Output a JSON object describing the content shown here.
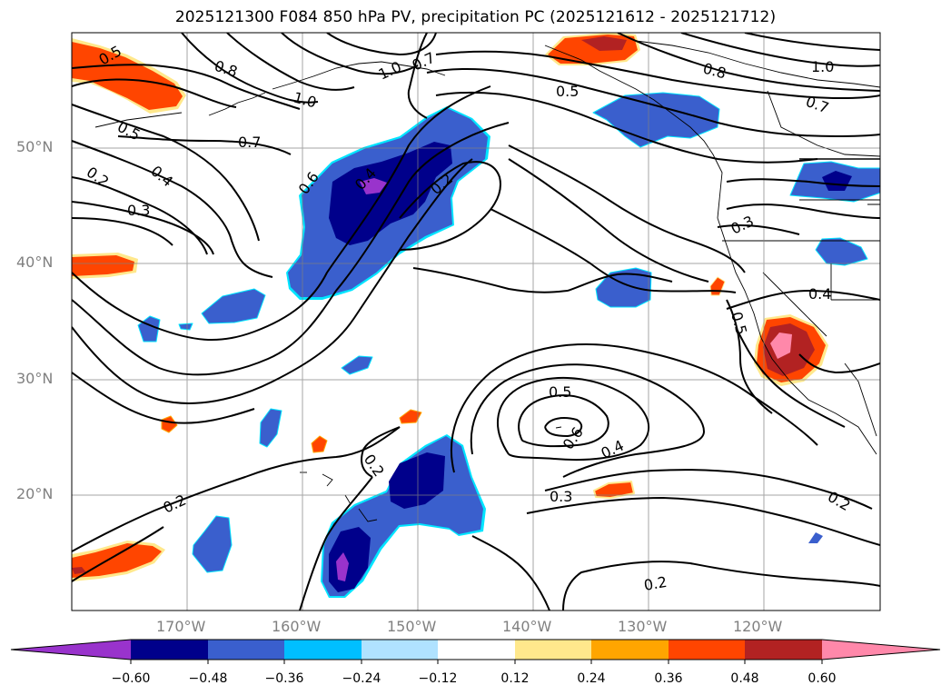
{
  "title": "2025121300 F084 850 hPa PV, precipitation PC (2025121612 - 2025121712)",
  "map": {
    "lon_range": [
      -180,
      -110
    ],
    "lat_range": [
      10,
      60
    ],
    "lat_labels": [
      "50°N",
      "40°N",
      "30°N",
      "20°N"
    ],
    "lon_labels": [
      "170°W",
      "160°W",
      "150°W",
      "140°W",
      "130°W",
      "120°W"
    ],
    "grid": true,
    "contour_labels": [
      "0.5",
      "0.8",
      "1.0",
      "0.7",
      "0.5",
      "0.8",
      "1.0",
      "0.7",
      "1.0",
      "0.5",
      "0.7",
      "0.6",
      "0.4",
      "0.2",
      "0.2",
      "0.4",
      "0.3",
      "0.3",
      "0.4",
      "0.5",
      "0.5",
      "0.6",
      "0.4",
      "0.3",
      "0.2",
      "0.2",
      "0.2",
      "0.2"
    ]
  },
  "colorbar": {
    "ticks": [
      "−0.60",
      "−0.48",
      "−0.36",
      "−0.24",
      "−0.12",
      "0.12",
      "0.24",
      "0.36",
      "0.48",
      "0.60"
    ],
    "colors": [
      "#9933cc",
      "#00008b",
      "#3a5fcd",
      "#00bfff",
      "#b0e2ff",
      "#ffffff",
      "#ffe88c",
      "#ffa500",
      "#ff4500",
      "#b22222",
      "#ff88aa"
    ]
  }
}
